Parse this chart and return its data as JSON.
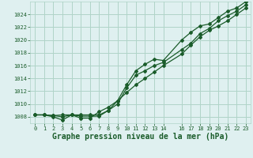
{
  "bg_color": "#dff0f0",
  "grid_color": "#b0d4c8",
  "line_color": "#1a5c2a",
  "xlabel": "Graphe pression niveau de la mer (hPa)",
  "xlabel_fontsize": 7,
  "xlim": [
    -0.5,
    23.5
  ],
  "ylim": [
    1007.0,
    1026.0
  ],
  "yticks": [
    1008,
    1010,
    1012,
    1014,
    1016,
    1018,
    1020,
    1022,
    1024
  ],
  "xticks": [
    0,
    1,
    2,
    3,
    4,
    5,
    6,
    7,
    8,
    9,
    10,
    11,
    12,
    13,
    14,
    16,
    17,
    18,
    19,
    20,
    21,
    22,
    23
  ],
  "series1_x": [
    0,
    1,
    2,
    3,
    4,
    5,
    6,
    7,
    8,
    9,
    10,
    11,
    12,
    13,
    14,
    16,
    17,
    18,
    19,
    20,
    21,
    22,
    23
  ],
  "series1_y": [
    1008.3,
    1008.3,
    1008.2,
    1008.0,
    1008.3,
    1008.1,
    1008.1,
    1008.1,
    1009.0,
    1010.0,
    1012.5,
    1014.5,
    1015.2,
    1016.0,
    1016.5,
    1018.5,
    1019.5,
    1021.0,
    1021.8,
    1023.0,
    1023.8,
    1024.5,
    1025.5
  ],
  "series2_x": [
    0,
    1,
    2,
    3,
    4,
    5,
    6,
    7,
    8,
    9,
    10,
    11,
    12,
    13,
    14,
    16,
    17,
    18,
    19,
    20,
    21,
    22,
    23
  ],
  "series2_y": [
    1008.3,
    1008.3,
    1008.0,
    1007.5,
    1008.3,
    1007.8,
    1007.8,
    1008.8,
    1009.5,
    1010.5,
    1013.0,
    1015.2,
    1016.2,
    1017.0,
    1016.8,
    1020.0,
    1021.2,
    1022.2,
    1022.5,
    1023.5,
    1024.5,
    1025.0,
    1026.0
  ],
  "series3_x": [
    0,
    1,
    2,
    3,
    4,
    5,
    6,
    7,
    8,
    9,
    10,
    11,
    12,
    13,
    14,
    16,
    17,
    18,
    19,
    20,
    21,
    22,
    23
  ],
  "series3_y": [
    1008.3,
    1008.3,
    1008.2,
    1008.3,
    1008.3,
    1008.3,
    1008.3,
    1008.3,
    1009.0,
    1010.5,
    1011.8,
    1013.0,
    1014.0,
    1015.0,
    1016.0,
    1017.8,
    1019.2,
    1020.5,
    1021.5,
    1022.2,
    1023.0,
    1024.0,
    1025.0
  ]
}
